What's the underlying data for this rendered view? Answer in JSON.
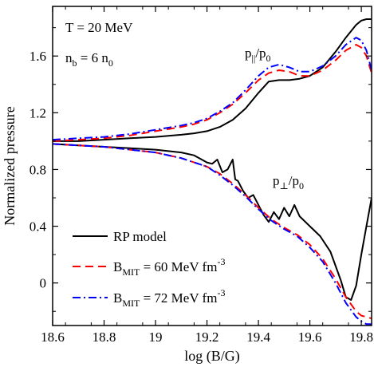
{
  "chart_data": {
    "type": "line",
    "xlabel": "log (B/G)",
    "ylabel": "Normalized pressure",
    "xlim": [
      18.6,
      19.84
    ],
    "ylim": [
      -0.3,
      1.95
    ],
    "x_ticks": [
      "18.6",
      "18.8",
      "19",
      "19.2",
      "19.4",
      "19.6",
      "19.8"
    ],
    "y_ticks": [
      "0",
      "0.4",
      "0.8",
      "1.2",
      "1.6"
    ],
    "annotations": {
      "temperature": "T = 20 MeV",
      "density": {
        "main": "n",
        "sub": "b",
        "rest": " = 6 n",
        "sub2": "0"
      },
      "p_parallel": {
        "main": "p",
        "sub": "||",
        "rest": "/p",
        "sub2": "0"
      },
      "p_perp": {
        "main": "p",
        "sub": "⊥",
        "rest": "/p",
        "sub2": "0"
      }
    },
    "legend": {
      "placement": "bottom-left",
      "entries": [
        {
          "main": "RP model",
          "sub": "",
          "rest": "",
          "sup": ""
        },
        {
          "main": "B",
          "sub": "MIT",
          "rest": " = 60 MeV fm",
          "sup": "-3"
        },
        {
          "main": "B",
          "sub": "MIT",
          "rest": " = 72 MeV fm",
          "sup": "-3"
        }
      ]
    },
    "series": [
      {
        "group": "parallel",
        "color": "#000000",
        "dash": "",
        "x": [
          18.6,
          18.7,
          18.8,
          18.9,
          19.0,
          19.1,
          19.15,
          19.2,
          19.25,
          19.3,
          19.35,
          19.4,
          19.44,
          19.48,
          19.52,
          19.56,
          19.6,
          19.65,
          19.7,
          19.74,
          19.78,
          19.8,
          19.82,
          19.84
        ],
        "y": [
          1.0,
          1.0,
          1.01,
          1.02,
          1.03,
          1.045,
          1.055,
          1.07,
          1.1,
          1.15,
          1.23,
          1.34,
          1.42,
          1.43,
          1.43,
          1.44,
          1.46,
          1.52,
          1.63,
          1.73,
          1.82,
          1.85,
          1.86,
          1.86
        ]
      },
      {
        "group": "parallel",
        "color": "#ff0000",
        "dash": "dashed",
        "x": [
          18.6,
          18.7,
          18.8,
          18.9,
          19.0,
          19.1,
          19.15,
          19.2,
          19.25,
          19.3,
          19.35,
          19.4,
          19.44,
          19.48,
          19.52,
          19.56,
          19.6,
          19.65,
          19.7,
          19.74,
          19.78,
          19.8,
          19.82,
          19.84
        ],
        "y": [
          1.0,
          1.01,
          1.02,
          1.04,
          1.07,
          1.1,
          1.12,
          1.15,
          1.2,
          1.26,
          1.34,
          1.43,
          1.48,
          1.5,
          1.49,
          1.46,
          1.46,
          1.5,
          1.57,
          1.64,
          1.68,
          1.66,
          1.6,
          1.48
        ]
      },
      {
        "group": "parallel",
        "color": "#0000ff",
        "dash": "dashdot",
        "x": [
          18.6,
          18.7,
          18.8,
          18.9,
          19.0,
          19.1,
          19.15,
          19.2,
          19.25,
          19.3,
          19.35,
          19.4,
          19.44,
          19.48,
          19.52,
          19.56,
          19.6,
          19.65,
          19.7,
          19.74,
          19.78,
          19.8,
          19.82,
          19.84
        ],
        "y": [
          1.01,
          1.02,
          1.03,
          1.05,
          1.08,
          1.11,
          1.13,
          1.16,
          1.21,
          1.27,
          1.36,
          1.46,
          1.52,
          1.54,
          1.52,
          1.49,
          1.49,
          1.53,
          1.6,
          1.68,
          1.73,
          1.71,
          1.64,
          1.5
        ]
      },
      {
        "group": "perpendicular",
        "color": "#000000",
        "dash": "",
        "x": [
          18.6,
          18.7,
          18.8,
          18.9,
          19.0,
          19.1,
          19.15,
          19.2,
          19.22,
          19.24,
          19.26,
          19.28,
          19.3,
          19.31,
          19.32,
          19.34,
          19.36,
          19.38,
          19.4,
          19.42,
          19.44,
          19.46,
          19.48,
          19.5,
          19.52,
          19.54,
          19.56,
          19.6,
          19.64,
          19.68,
          19.72,
          19.74,
          19.76,
          19.78,
          19.8,
          19.82,
          19.84
        ],
        "y": [
          0.98,
          0.97,
          0.96,
          0.95,
          0.94,
          0.92,
          0.9,
          0.85,
          0.84,
          0.87,
          0.78,
          0.8,
          0.87,
          0.73,
          0.72,
          0.65,
          0.6,
          0.62,
          0.55,
          0.48,
          0.43,
          0.5,
          0.45,
          0.53,
          0.47,
          0.55,
          0.47,
          0.4,
          0.33,
          0.22,
          0.02,
          -0.1,
          -0.12,
          -0.02,
          0.2,
          0.4,
          0.6
        ]
      },
      {
        "group": "perpendicular",
        "color": "#ff0000",
        "dash": "dashed",
        "x": [
          18.6,
          18.7,
          18.8,
          18.9,
          19.0,
          19.1,
          19.2,
          19.25,
          19.3,
          19.35,
          19.4,
          19.45,
          19.5,
          19.55,
          19.6,
          19.65,
          19.7,
          19.74,
          19.78,
          19.8,
          19.82,
          19.84
        ],
        "y": [
          0.98,
          0.97,
          0.96,
          0.94,
          0.92,
          0.88,
          0.82,
          0.77,
          0.7,
          0.62,
          0.53,
          0.45,
          0.39,
          0.34,
          0.27,
          0.17,
          0.03,
          -0.1,
          -0.2,
          -0.23,
          -0.24,
          -0.25
        ]
      },
      {
        "group": "perpendicular",
        "color": "#0000ff",
        "dash": "dashdot",
        "x": [
          18.6,
          18.7,
          18.8,
          18.9,
          19.0,
          19.1,
          19.2,
          19.25,
          19.3,
          19.35,
          19.4,
          19.45,
          19.5,
          19.55,
          19.6,
          19.65,
          19.7,
          19.74,
          19.78,
          19.8,
          19.82,
          19.84
        ],
        "y": [
          0.98,
          0.97,
          0.96,
          0.94,
          0.92,
          0.88,
          0.82,
          0.76,
          0.69,
          0.61,
          0.52,
          0.44,
          0.38,
          0.33,
          0.25,
          0.15,
          0.0,
          -0.14,
          -0.24,
          -0.27,
          -0.29,
          -0.29
        ]
      }
    ]
  }
}
